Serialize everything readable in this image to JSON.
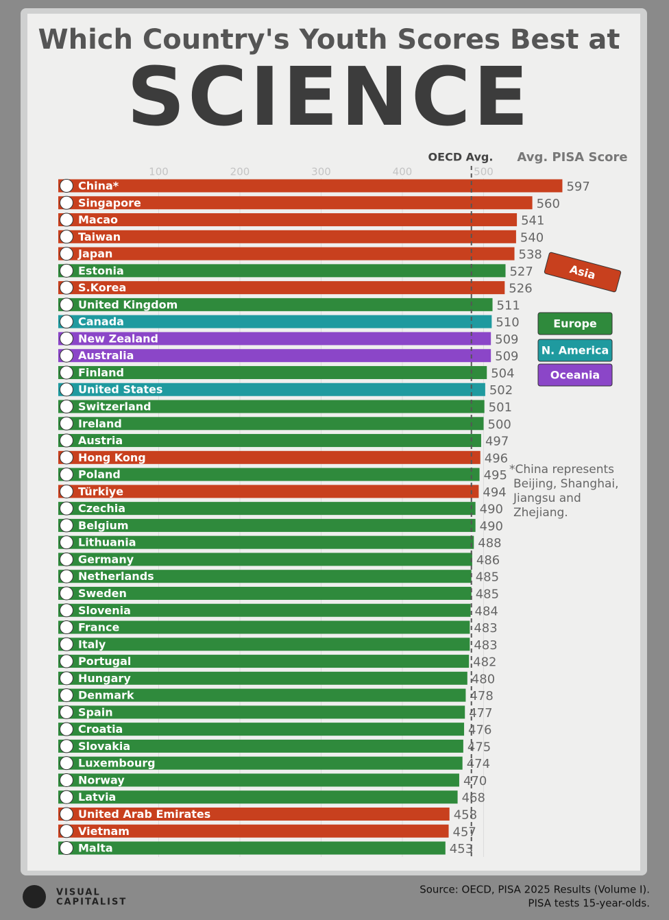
{
  "chart_data": {
    "type": "bar",
    "orientation": "horizontal",
    "title": "Which Country's Youth Scores Best at",
    "title_big": "SCIENCE",
    "value_axis_label": "Avg. PISA Score",
    "reference_line": {
      "label": "OECD Avg.",
      "value": 485
    },
    "categories": [
      "China*",
      "Singapore",
      "Macao",
      "Taiwan",
      "Japan",
      "Estonia",
      "S.Korea",
      "United Kingdom",
      "Canada",
      "New Zealand",
      "Australia",
      "Finland",
      "United States",
      "Switzerland",
      "Ireland",
      "Austria",
      "Hong Kong",
      "Poland",
      "Türkiye",
      "Czechia",
      "Belgium",
      "Lithuania",
      "Germany",
      "Netherlands",
      "Sweden",
      "Slovenia",
      "France",
      "Italy",
      "Portugal",
      "Hungary",
      "Denmark",
      "Spain",
      "Croatia",
      "Slovakia",
      "Luxembourg",
      "Norway",
      "Latvia",
      "United Arab Emirates",
      "Vietnam",
      "Malta"
    ],
    "values": [
      597,
      560,
      541,
      540,
      538,
      527,
      526,
      511,
      510,
      509,
      509,
      504,
      502,
      501,
      500,
      497,
      496,
      495,
      494,
      490,
      490,
      488,
      486,
      485,
      485,
      484,
      483,
      483,
      482,
      480,
      478,
      477,
      476,
      475,
      474,
      470,
      468,
      458,
      457,
      453
    ],
    "colors": [
      "#c8401e",
      "#c8401e",
      "#c8401e",
      "#c8401e",
      "#c8401e",
      "#2f8a3c",
      "#c8401e",
      "#2f8a3c",
      "#1f9a9f",
      "#8b46c8",
      "#8b46c8",
      "#2f8a3c",
      "#1f9a9f",
      "#2f8a3c",
      "#2f8a3c",
      "#2f8a3c",
      "#c8401e",
      "#2f8a3c",
      "#c8401e",
      "#2f8a3c",
      "#2f8a3c",
      "#2f8a3c",
      "#2f8a3c",
      "#2f8a3c",
      "#2f8a3c",
      "#2f8a3c",
      "#2f8a3c",
      "#2f8a3c",
      "#2f8a3c",
      "#2f8a3c",
      "#2f8a3c",
      "#2f8a3c",
      "#2f8a3c",
      "#2f8a3c",
      "#2f8a3c",
      "#2f8a3c",
      "#2f8a3c",
      "#c8401e",
      "#c8401e",
      "#2f8a3c"
    ],
    "legend": [
      {
        "name": "Asia",
        "color": "#c8401e"
      },
      {
        "name": "Europe",
        "color": "#2f8a3c"
      },
      {
        "name": "N. America",
        "color": "#1f9a9f"
      },
      {
        "name": "Oceania",
        "color": "#8b46c8"
      }
    ],
    "xlim": [
      0,
      620
    ],
    "xticks": [
      100,
      200,
      300,
      400,
      500
    ],
    "grid": true,
    "note": [
      "*China represents",
      "Beijing, Shanghai,",
      "Jiangsu and",
      "Zhejiang."
    ],
    "source": [
      "Source: OECD, PISA 2025 Results (Volume I).",
      "PISA tests 15-year-olds."
    ],
    "brand": [
      "VISUAL",
      "CAPITALIST"
    ]
  }
}
